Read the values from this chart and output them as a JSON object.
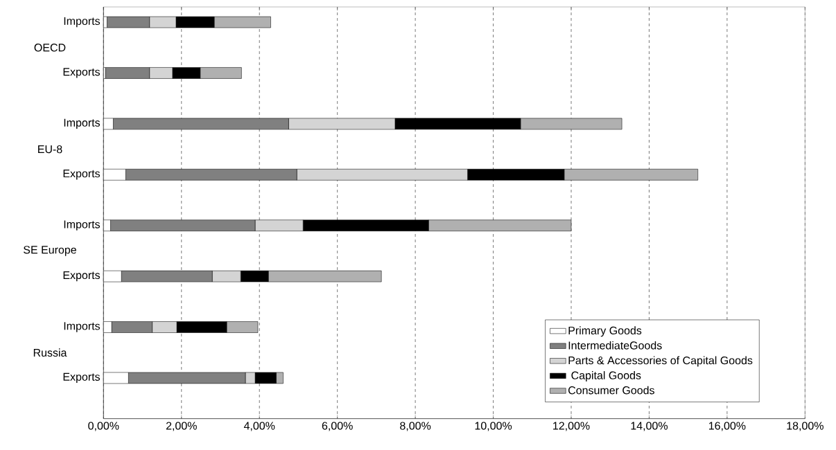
{
  "chart_data": {
    "type": "bar",
    "orientation": "horizontal",
    "stacked": true,
    "categories": [
      "Imports",
      "Exports",
      "Imports",
      "Exports",
      "Imports",
      "Exports",
      "Imports",
      "Exports"
    ],
    "annotations": [
      "OECD",
      "EU-8",
      "SE Europe",
      "Russia"
    ],
    "series": [
      {
        "name": "Primary Goods",
        "color": "#ffffff",
        "values": [
          0.09,
          0.05,
          0.25,
          0.57,
          0.18,
          0.46,
          0.21,
          0.64
        ]
      },
      {
        "name": "IntermediateGoods",
        "color": "#808080",
        "values": [
          1.09,
          1.13,
          4.5,
          4.39,
          3.71,
          2.33,
          1.04,
          3.0
        ]
      },
      {
        "name": "Parts & Accessories of Capital Goods",
        "color": "#d4d4d4",
        "values": [
          0.68,
          0.59,
          2.73,
          4.38,
          1.23,
          0.73,
          0.63,
          0.25
        ]
      },
      {
        "name": " Capital Goods",
        "color": "#000000",
        "values": [
          0.98,
          0.71,
          3.22,
          2.48,
          3.22,
          0.71,
          1.28,
          0.54
        ]
      },
      {
        "name": "Consumer Goods",
        "color": "#b0b0b0",
        "values": [
          1.45,
          1.06,
          2.6,
          3.43,
          3.66,
          2.9,
          0.8,
          0.18
        ]
      }
    ],
    "xlim": [
      0,
      18
    ],
    "xticks": [
      {
        "value": 0,
        "label": "0,00%"
      },
      {
        "value": 2,
        "label": "2,00%"
      },
      {
        "value": 4,
        "label": "4,00%"
      },
      {
        "value": 6,
        "label": "6,00%"
      },
      {
        "value": 8,
        "label": "8,00%"
      },
      {
        "value": 10,
        "label": "10,00%"
      },
      {
        "value": 12,
        "label": "12,00%"
      },
      {
        "value": 14,
        "label": "14,00%"
      },
      {
        "value": 16,
        "label": "16,00%"
      },
      {
        "value": 18,
        "label": "18,00%"
      }
    ],
    "grid": "x",
    "legend": "bottom right"
  }
}
